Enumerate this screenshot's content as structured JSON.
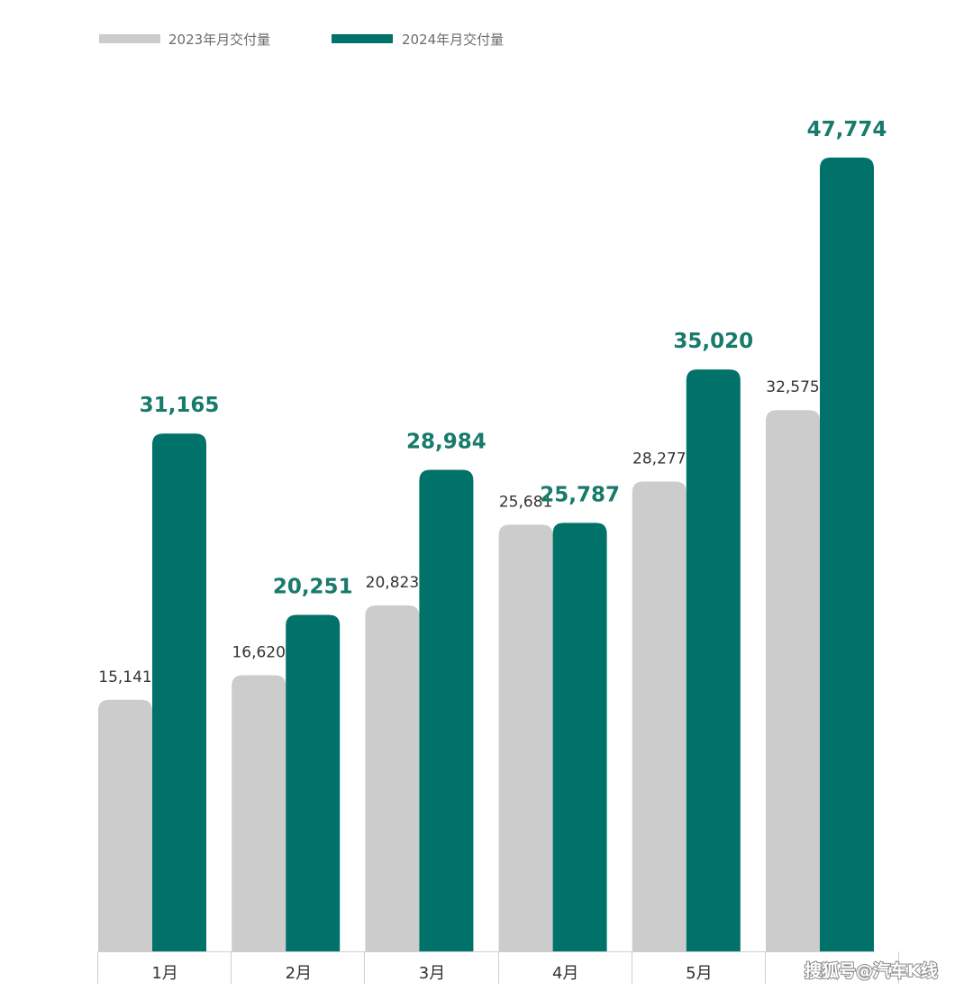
{
  "chart_data": {
    "type": "bar",
    "categories": [
      "1月",
      "2月",
      "3月",
      "4月",
      "5月",
      ""
    ],
    "series": [
      {
        "name": "2023年月交付量",
        "values": [
          15141,
          16620,
          20823,
          25681,
          28277,
          32575
        ],
        "labels": [
          "15,141",
          "16,620",
          "20,823",
          "25,681",
          "28,277",
          "32,575"
        ],
        "color": "#cccccc"
      },
      {
        "name": "2024年月交付量",
        "values": [
          31165,
          20251,
          28984,
          25787,
          35020,
          47774
        ],
        "labels": [
          "31,165",
          "20,251",
          "28,984",
          "25,787",
          "35,020",
          "47,774"
        ],
        "color": "#00726a"
      }
    ],
    "title": "",
    "xlabel": "",
    "ylabel": "",
    "ylim": [
      0,
      52000
    ],
    "grid": false,
    "legend": "top-left",
    "label_color_2024": "#177a6a",
    "axis_color": "#cfcfcf"
  },
  "watermark": "搜狐号@汽车K线"
}
